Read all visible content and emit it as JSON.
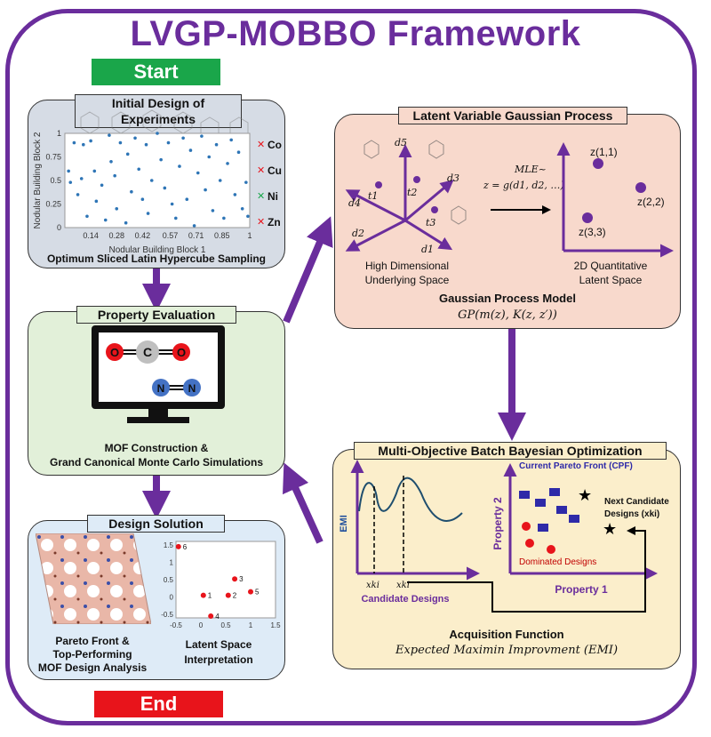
{
  "title": "LVGP-MOBBO Framework",
  "start_label": "Start",
  "end_label": "End",
  "colors": {
    "accent": "#6a2d9c",
    "start": "#1aa64a",
    "end": "#e8141b",
    "lvgp_bg": "#f8d9cc",
    "mobbo_bg": "#fbeecb",
    "prop_bg": "#e2f0d9",
    "grey_bg": "#d6dce5",
    "design_bg": "#deebf7"
  },
  "doe": {
    "header": "Initial Design of Experiments",
    "footer": "Optimum Sliced Latin Hypercube Sampling",
    "xlabel": "Nodular Building Block 1",
    "ylabel": "Nodular Building Block 2",
    "xticks": [
      "0.14",
      "0.28",
      "0.42",
      "0.57",
      "0.71",
      "0.85",
      "1"
    ],
    "yticks": [
      "0",
      "0.25",
      "0.5",
      "0.75",
      "1"
    ],
    "metals": [
      "Co",
      "Cu",
      "Ni",
      "Zn"
    ]
  },
  "property": {
    "header": "Property Evaluation",
    "caption_1": "MOF Construction &",
    "caption_2": "Grand Canonical Monte Carlo Simulations",
    "co2_atoms": [
      "O",
      "C",
      "O"
    ],
    "n2_atoms": [
      "N",
      "N"
    ]
  },
  "design": {
    "header": "Design Solution",
    "caption_left_1": "Pareto Front &",
    "caption_left_2": "Top-Performing",
    "caption_left_3": "MOF Design Analysis",
    "caption_right_1": "Latent Space",
    "caption_right_2": "Interpretation",
    "xticks": [
      "-0.5",
      "0",
      "0.5",
      "1",
      "1.5"
    ],
    "yticks": [
      "1.5",
      "1",
      "0.5",
      "0",
      "-0.5"
    ],
    "points": [
      "6",
      "3",
      "1",
      "2",
      "5",
      "4"
    ]
  },
  "lvgp": {
    "header": "Latent Variable Gaussian Process",
    "axes": [
      "d5",
      "d3",
      "d4",
      "d2",
      "d1"
    ],
    "t_labels": [
      "t1",
      "t2",
      "t3"
    ],
    "mle_1": "MLE~",
    "mle_2": "z = g(d1, d2, …)",
    "latent_points": [
      "z(1,1)",
      "z(2,2)",
      "z(3,3)"
    ],
    "caption_high_1": "High Dimensional",
    "caption_high_2": "Underlying Space",
    "caption_latent_1": "2D Quantitative",
    "caption_latent_2": "Latent Space",
    "model_title": "Gaussian Process Model",
    "model_formula": "GP(m(z), K(z, z′))"
  },
  "mobbo": {
    "header": "Multi-Objective Batch Bayesian Optimization",
    "emi_label": "EMI",
    "xk": [
      "xki",
      "xki"
    ],
    "candidate_label": "Candidate Designs",
    "pareto_label": "Current Pareto Front (CPF)",
    "next_label_1": "Next Candidate",
    "next_label_2": "Designs (xki)",
    "dominated_label": "Dominated Designs",
    "prop1": "Property 1",
    "prop2": "Property 2",
    "acq_title": "Acquisition Function",
    "acq_formula": "Expected Maximin Improvment (EMI)"
  },
  "chart_data": [
    {
      "type": "scatter",
      "xlabel": "Nodular Building Block 1",
      "ylabel": "Nodular Building Block 2",
      "xlim": [
        0,
        1
      ],
      "ylim": [
        0,
        1
      ],
      "points": [
        [
          0.02,
          0.6
        ],
        [
          0.03,
          0.48
        ],
        [
          0.05,
          0.9
        ],
        [
          0.07,
          0.35
        ],
        [
          0.09,
          0.52
        ],
        [
          0.1,
          0.88
        ],
        [
          0.12,
          0.12
        ],
        [
          0.14,
          0.92
        ],
        [
          0.16,
          0.6
        ],
        [
          0.17,
          0.28
        ],
        [
          0.2,
          0.45
        ],
        [
          0.22,
          0.08
        ],
        [
          0.24,
          0.98
        ],
        [
          0.25,
          0.7
        ],
        [
          0.27,
          0.55
        ],
        [
          0.28,
          0.2
        ],
        [
          0.3,
          0.9
        ],
        [
          0.33,
          0.05
        ],
        [
          0.34,
          0.78
        ],
        [
          0.36,
          0.38
        ],
        [
          0.38,
          0.95
        ],
        [
          0.4,
          0.62
        ],
        [
          0.42,
          0.3
        ],
        [
          0.44,
          0.88
        ],
        [
          0.45,
          0.15
        ],
        [
          0.47,
          0.5
        ],
        [
          0.5,
          1.0
        ],
        [
          0.52,
          0.72
        ],
        [
          0.54,
          0.42
        ],
        [
          0.56,
          0.9
        ],
        [
          0.58,
          0.25
        ],
        [
          0.6,
          0.1
        ],
        [
          0.62,
          0.65
        ],
        [
          0.64,
          0.95
        ],
        [
          0.66,
          0.3
        ],
        [
          0.68,
          0.82
        ],
        [
          0.7,
          0.02
        ],
        [
          0.72,
          0.58
        ],
        [
          0.74,
          0.97
        ],
        [
          0.76,
          0.4
        ],
        [
          0.78,
          0.75
        ],
        [
          0.8,
          0.18
        ],
        [
          0.82,
          0.88
        ],
        [
          0.84,
          0.5
        ],
        [
          0.86,
          0.1
        ],
        [
          0.88,
          0.68
        ],
        [
          0.9,
          0.93
        ],
        [
          0.92,
          0.35
        ],
        [
          0.94,
          0.8
        ],
        [
          0.96,
          0.2
        ],
        [
          0.98,
          0.48
        ],
        [
          0.99,
          0.12
        ]
      ]
    },
    {
      "type": "scatter",
      "xlim": [
        -0.5,
        1.5
      ],
      "ylim": [
        -0.6,
        1.6
      ],
      "labels": [
        "6",
        "3",
        "1",
        "2",
        "5",
        "4"
      ],
      "points": [
        [
          -0.45,
          1.45
        ],
        [
          0.68,
          0.52
        ],
        [
          0.05,
          0.05
        ],
        [
          0.55,
          0.05
        ],
        [
          1.0,
          0.15
        ],
        [
          0.2,
          -0.55
        ]
      ]
    }
  ]
}
